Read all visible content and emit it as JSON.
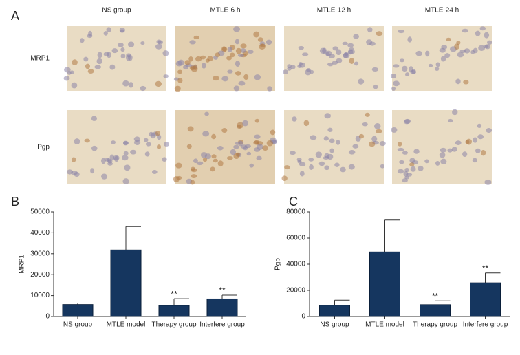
{
  "panel_a": {
    "label": "A",
    "columns": [
      "NS group",
      "MTLE-6 h",
      "MTLE-12 h",
      "MTLE-24 h"
    ],
    "rows": [
      "MRP1",
      "Pgp"
    ]
  },
  "chart_data": [
    {
      "type": "bar",
      "panel_label": "B",
      "y_label": "MRP1",
      "categories": [
        "NS group",
        "MTLE model",
        "Therapy group",
        "Interfere group"
      ],
      "values": [
        5700,
        31800,
        5300,
        8400
      ],
      "errors": [
        700,
        11200,
        3200,
        1800
      ],
      "annotations": [
        null,
        null,
        "**",
        "**"
      ],
      "color": "#15365f",
      "ylim": [
        0,
        50000
      ],
      "yticks": [
        0,
        10000,
        20000,
        30000,
        40000,
        50000
      ]
    },
    {
      "type": "bar",
      "panel_label": "C",
      "y_label": "Pgp",
      "categories": [
        "NS group",
        "MTLE model",
        "Therapy group",
        "Interfere group"
      ],
      "values": [
        8600,
        49300,
        9000,
        25700
      ],
      "errors": [
        3900,
        24500,
        3000,
        7600
      ],
      "annotations": [
        null,
        null,
        "**",
        "**"
      ],
      "color": "#15365f",
      "ylim": [
        0,
        80000
      ],
      "yticks": [
        0,
        20000,
        40000,
        60000,
        80000
      ]
    }
  ]
}
